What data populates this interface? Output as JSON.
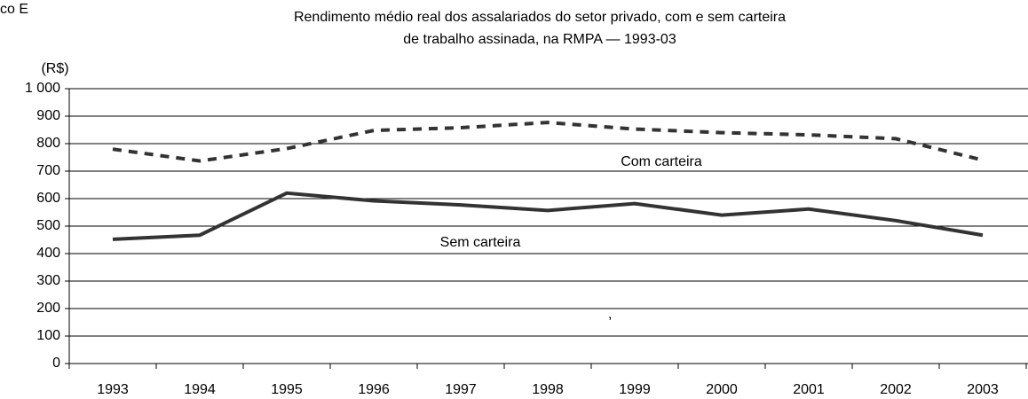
{
  "chart_data": {
    "type": "line",
    "title": [
      "Rendimento médio real dos assalariados do setor privado, com e sem carteira",
      "de trabalho assinada, na RMPA — 1993-03"
    ],
    "y_label": "(R$)",
    "annotations": [
      "co E",
      ","
    ],
    "categories": [
      "1993",
      "1994",
      "1995",
      "1996",
      "1997",
      "1998",
      "1999",
      "2000",
      "2001",
      "2002",
      "2003"
    ],
    "series": [
      {
        "name": "Com carteira",
        "color": "#333333",
        "style": "dashed",
        "values": [
          780,
          737,
          782,
          848,
          858,
          877,
          853,
          840,
          832,
          818,
          740
        ]
      },
      {
        "name": "Sem carteira",
        "color": "#333333",
        "style": "solid",
        "values": [
          452,
          467,
          620,
          592,
          577,
          557,
          582,
          540,
          562,
          520,
          467
        ]
      }
    ],
    "ylim": [
      0,
      1000
    ],
    "yticks": [
      0,
      100,
      200,
      300,
      400,
      500,
      600,
      700,
      800,
      900,
      {
        "value": 1000,
        "label": "1 000"
      }
    ],
    "grid": true
  }
}
